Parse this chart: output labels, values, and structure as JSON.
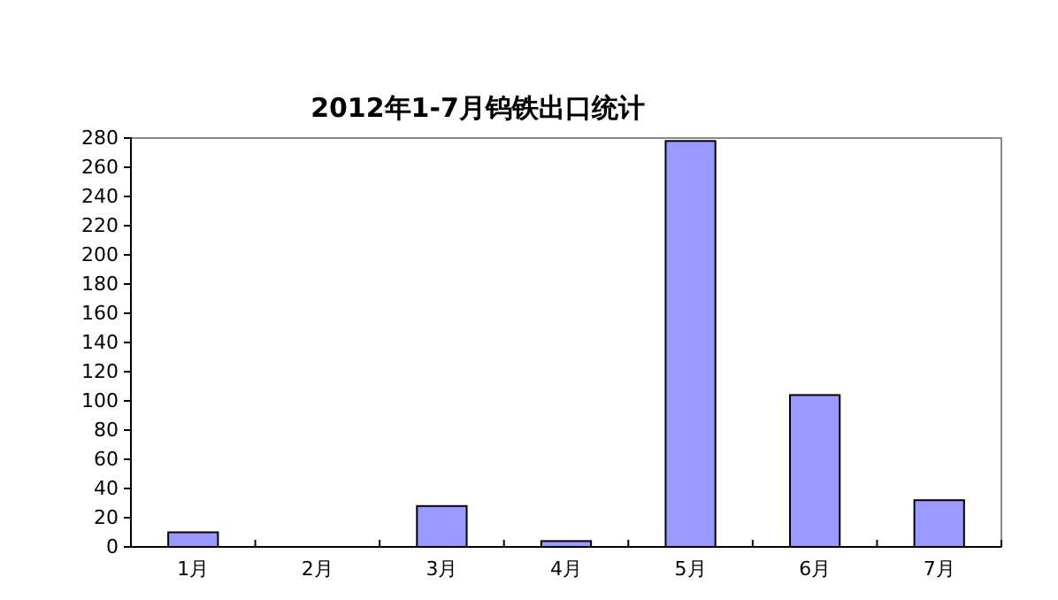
{
  "chart_data": {
    "type": "bar",
    "title": "2012年1-7月钨铁出口统计",
    "categories": [
      "1月",
      "2月",
      "3月",
      "4月",
      "5月",
      "6月",
      "7月"
    ],
    "values": [
      10,
      0,
      28,
      4,
      278,
      104,
      32
    ],
    "color": "#9999ff",
    "ylim": [
      0,
      280
    ],
    "yticks": [
      0,
      20,
      40,
      60,
      80,
      100,
      120,
      140,
      160,
      180,
      200,
      220,
      240,
      260,
      280
    ],
    "grid": false,
    "legend": false
  }
}
